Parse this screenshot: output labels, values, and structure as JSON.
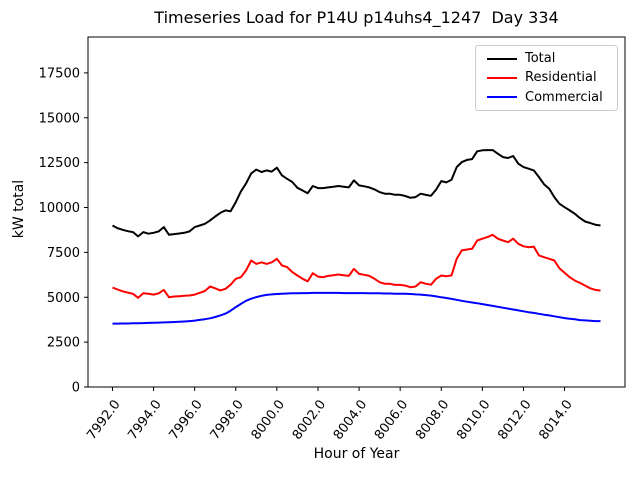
{
  "chart_data": {
    "type": "line",
    "title": "Timeseries Load for P14U p14uhs4_1247  Day 334",
    "xlabel": "Hour of Year",
    "ylabel": "kW total",
    "xlim": [
      7990.81,
      8016.94
    ],
    "ylim": [
      0,
      19500
    ],
    "grid": false,
    "legend_position": "upper right",
    "x_ticks": [
      7992,
      7994,
      7996,
      7998,
      8000,
      8002,
      8004,
      8006,
      8008,
      8010,
      8012,
      8014
    ],
    "x_tick_labels": [
      "7992.0",
      "7994.0",
      "7996.0",
      "7998.0",
      "8000.0",
      "8002.0",
      "8004.0",
      "8006.0",
      "8008.0",
      "8010.0",
      "8012.0",
      "8014.0"
    ],
    "y_ticks": [
      0,
      2500,
      5000,
      7500,
      10000,
      12500,
      15000,
      17500
    ],
    "y_tick_labels": [
      "0",
      "2500",
      "5000",
      "7500",
      "10000",
      "12500",
      "15000",
      "17500"
    ],
    "x_start": 7992.0,
    "x_step": 0.25,
    "x": [
      7992.0,
      7992.25,
      7992.5,
      7992.75,
      7993.0,
      7993.25,
      7993.5,
      7993.75,
      7994.0,
      7994.25,
      7994.5,
      7994.75,
      7995.0,
      7995.25,
      7995.5,
      7995.75,
      7996.0,
      7996.25,
      7996.5,
      7996.75,
      7997.0,
      7997.25,
      7997.5,
      7997.75,
      7998.0,
      7998.25,
      7998.5,
      7998.75,
      7999.0,
      7999.25,
      7999.5,
      7999.75,
      8000.0,
      8000.25,
      8000.5,
      8000.75,
      8001.0,
      8001.25,
      8001.5,
      8001.75,
      8002.0,
      8002.25,
      8002.5,
      8002.75,
      8003.0,
      8003.25,
      8003.5,
      8003.75,
      8004.0,
      8004.25,
      8004.5,
      8004.75,
      8005.0,
      8005.25,
      8005.5,
      8005.75,
      8006.0,
      8006.25,
      8006.5,
      8006.75,
      8007.0,
      8007.25,
      8007.5,
      8007.75,
      8008.0,
      8008.25,
      8008.5,
      8008.75,
      8009.0,
      8009.25,
      8009.5,
      8009.75,
      8010.0,
      8010.25,
      8010.5,
      8010.75,
      8011.0,
      8011.25,
      8011.5,
      8011.75,
      8012.0,
      8012.25,
      8012.5,
      8012.75,
      8013.0,
      8013.25,
      8013.5,
      8013.75,
      8014.0,
      8014.25,
      8014.5,
      8014.75,
      8015.0,
      8015.25,
      8015.5,
      8015.75
    ],
    "series": [
      {
        "name": "Total",
        "color": "#000000",
        "values": [
          9000,
          8850,
          8760,
          8680,
          8630,
          8390,
          8630,
          8540,
          8590,
          8670,
          8910,
          8480,
          8520,
          8550,
          8590,
          8670,
          8910,
          9000,
          9090,
          9280,
          9500,
          9700,
          9840,
          9790,
          10300,
          10900,
          11330,
          11900,
          12110,
          11980,
          12070,
          12000,
          12220,
          11790,
          11600,
          11420,
          11100,
          10950,
          10800,
          11200,
          11080,
          11080,
          11120,
          11160,
          11200,
          11160,
          11120,
          11510,
          11230,
          11180,
          11120,
          11010,
          10860,
          10770,
          10770,
          10710,
          10710,
          10640,
          10540,
          10580,
          10770,
          10700,
          10650,
          11000,
          11470,
          11400,
          11550,
          12250,
          12530,
          12650,
          12700,
          13130,
          13190,
          13200,
          13200,
          13000,
          12810,
          12760,
          12870,
          12440,
          12250,
          12160,
          12070,
          11700,
          11300,
          11050,
          10580,
          10210,
          10020,
          9840,
          9650,
          9410,
          9220,
          9130,
          9040,
          9000
        ]
      },
      {
        "name": "Residential",
        "color": "#ff0000",
        "values": [
          5540,
          5430,
          5330,
          5260,
          5190,
          4970,
          5220,
          5190,
          5150,
          5220,
          5410,
          5000,
          5040,
          5060,
          5080,
          5100,
          5150,
          5250,
          5350,
          5600,
          5500,
          5380,
          5470,
          5700,
          6030,
          6120,
          6490,
          7050,
          6860,
          6950,
          6860,
          6950,
          7140,
          6770,
          6680,
          6400,
          6210,
          6030,
          5890,
          6340,
          6150,
          6120,
          6190,
          6230,
          6270,
          6230,
          6190,
          6580,
          6300,
          6250,
          6190,
          6030,
          5840,
          5750,
          5750,
          5690,
          5690,
          5650,
          5560,
          5600,
          5840,
          5750,
          5700,
          6030,
          6210,
          6170,
          6220,
          7140,
          7610,
          7660,
          7700,
          8160,
          8260,
          8350,
          8480,
          8260,
          8160,
          8070,
          8260,
          7980,
          7840,
          7790,
          7820,
          7330,
          7230,
          7140,
          7050,
          6620,
          6360,
          6120,
          5930,
          5800,
          5650,
          5500,
          5410,
          5370
        ]
      },
      {
        "name": "Commercial",
        "color": "#0000ff",
        "values": [
          3530,
          3530,
          3540,
          3540,
          3550,
          3550,
          3560,
          3570,
          3580,
          3590,
          3600,
          3610,
          3620,
          3630,
          3650,
          3670,
          3700,
          3740,
          3780,
          3830,
          3900,
          3990,
          4090,
          4250,
          4450,
          4630,
          4800,
          4920,
          5010,
          5080,
          5130,
          5160,
          5180,
          5200,
          5210,
          5220,
          5220,
          5230,
          5230,
          5240,
          5240,
          5240,
          5240,
          5240,
          5240,
          5230,
          5230,
          5230,
          5230,
          5230,
          5220,
          5220,
          5220,
          5210,
          5210,
          5200,
          5200,
          5190,
          5180,
          5160,
          5150,
          5120,
          5090,
          5050,
          5000,
          4960,
          4910,
          4860,
          4800,
          4750,
          4710,
          4670,
          4620,
          4570,
          4520,
          4470,
          4420,
          4370,
          4320,
          4270,
          4220,
          4170,
          4130,
          4080,
          4030,
          3990,
          3940,
          3890,
          3840,
          3800,
          3770,
          3730,
          3710,
          3690,
          3670,
          3670
        ]
      }
    ]
  }
}
